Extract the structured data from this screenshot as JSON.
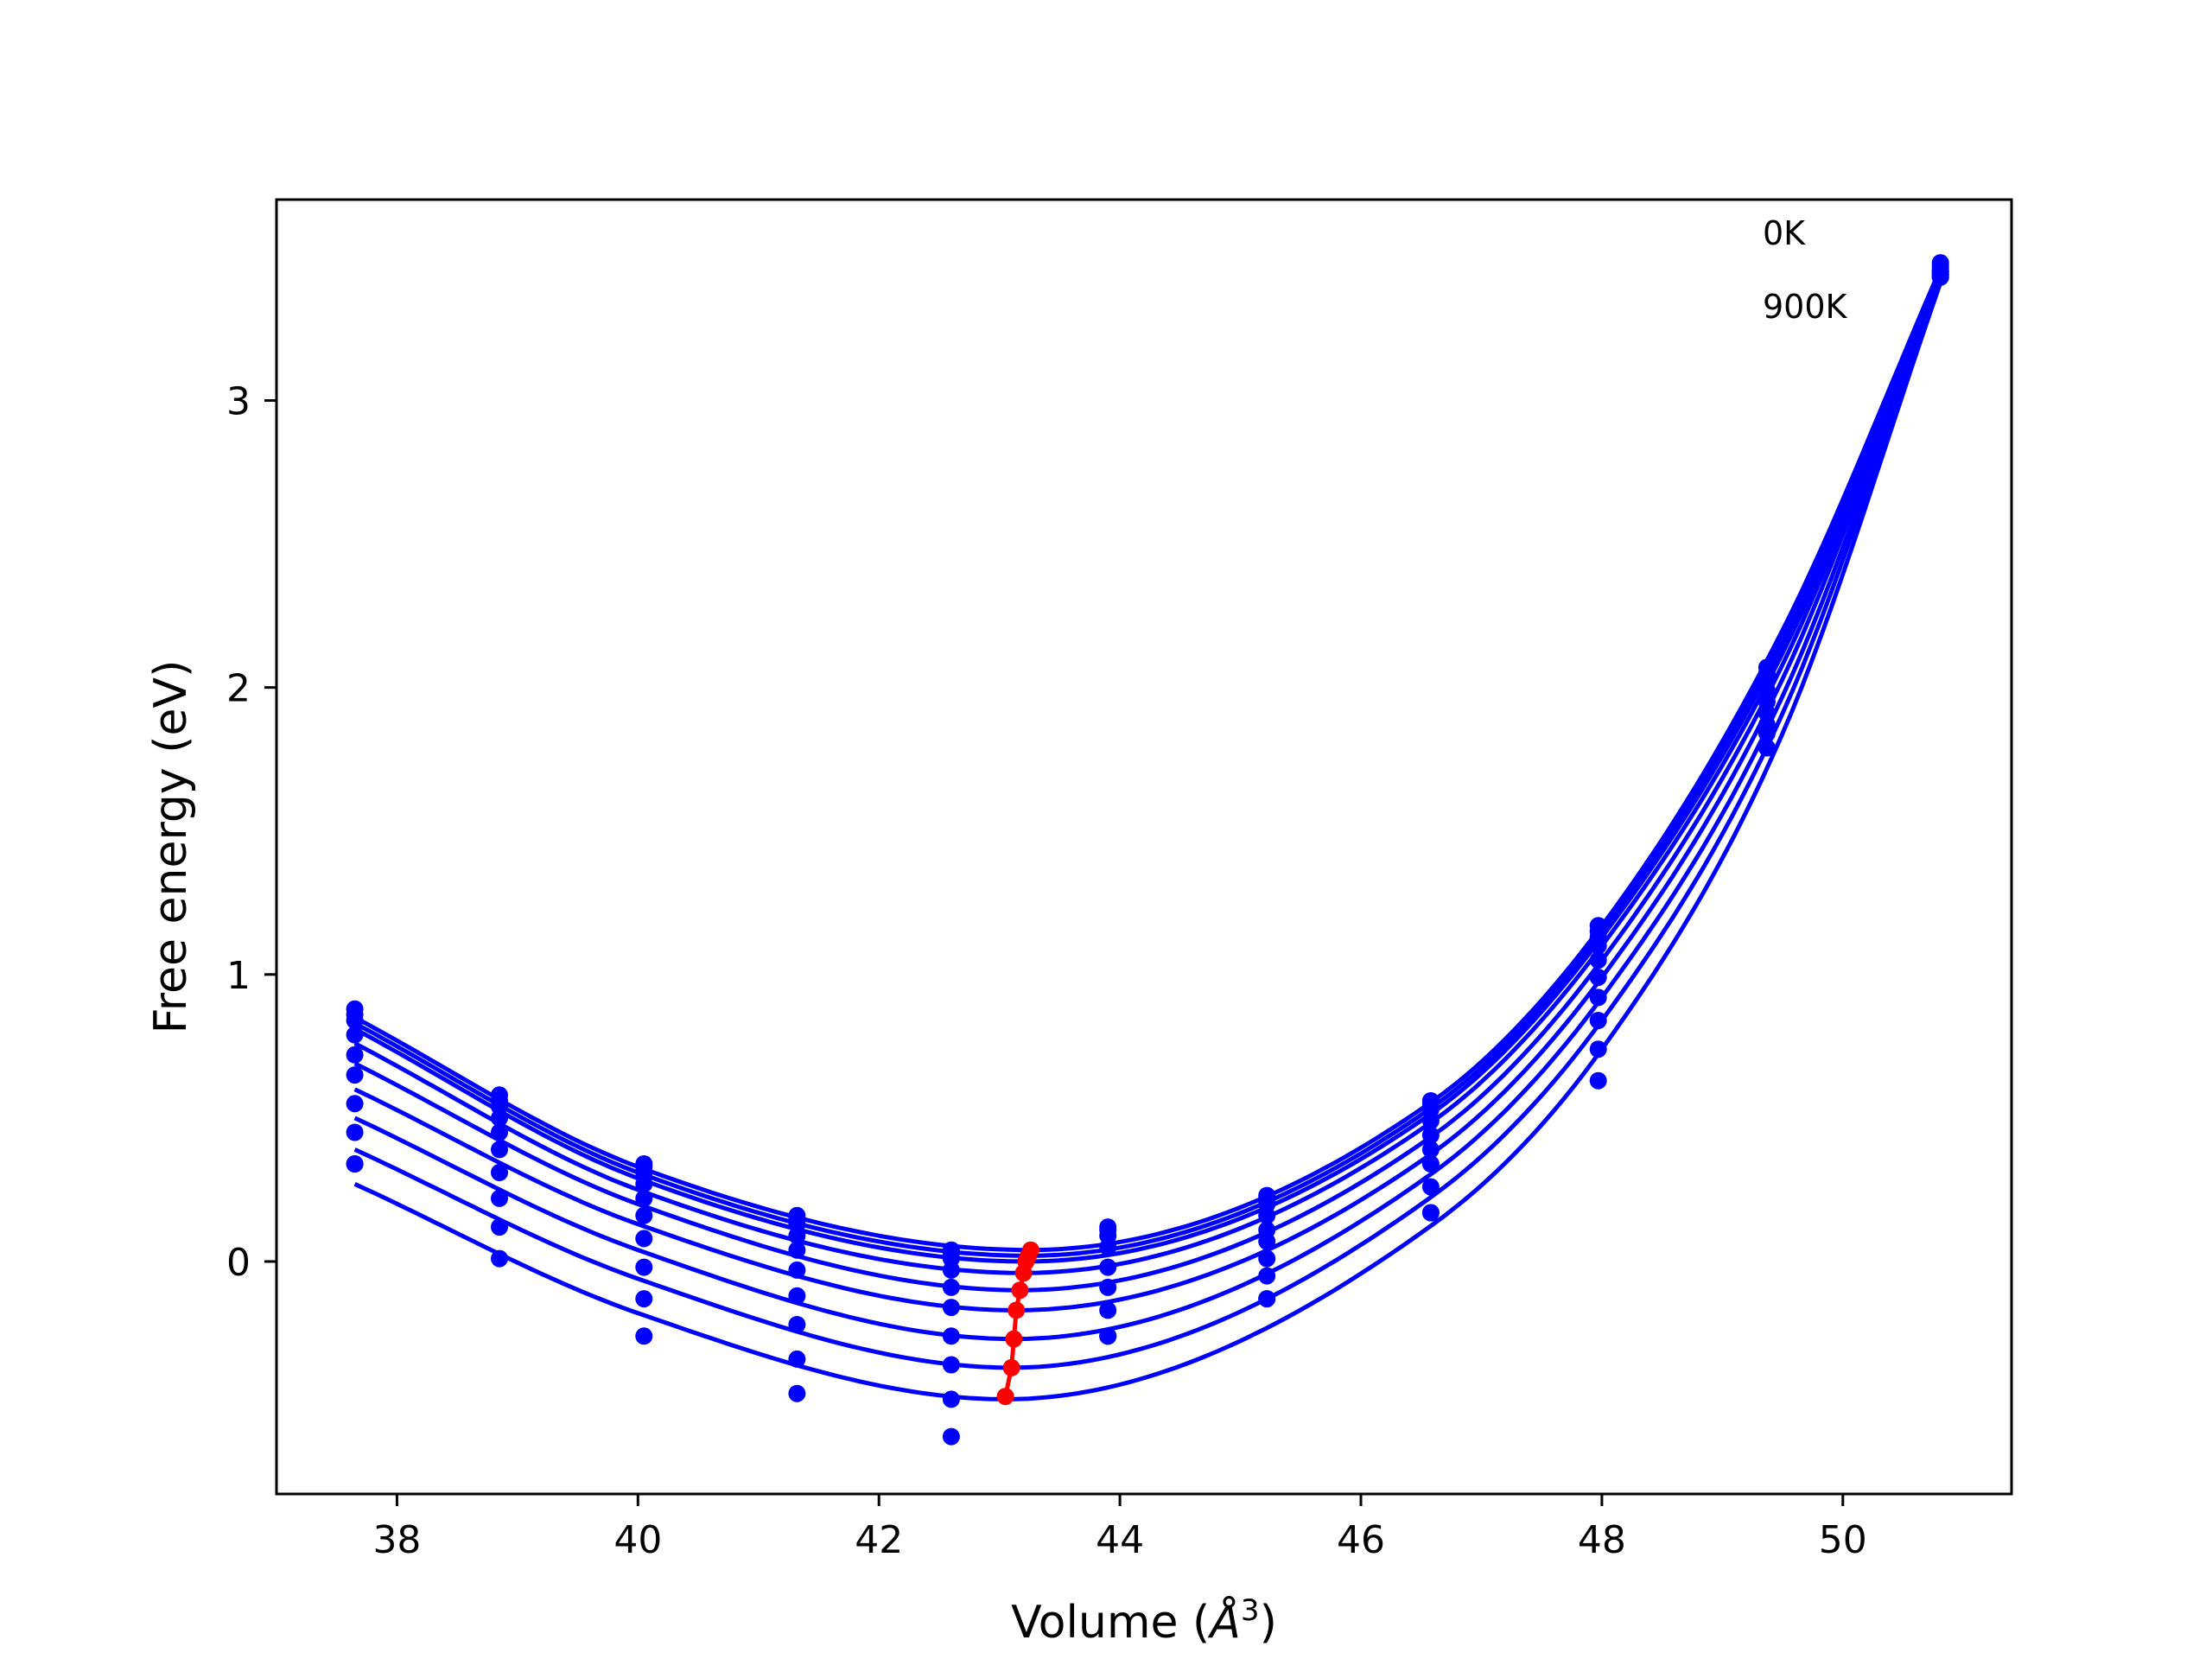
{
  "chart_data": {
    "type": "line",
    "title": "",
    "xlabel": "Volume (Å3)",
    "xlabel_main": "Volume (",
    "xlabel_unit": "Å",
    "xlabel_sup": "3",
    "xlabel_close": ")",
    "ylabel": "Free energy (eV)",
    "xlim": [
      37.0,
      51.4
    ],
    "ylim": [
      -0.81,
      3.7
    ],
    "grid": false,
    "xticks": [
      38,
      40,
      42,
      44,
      46,
      48,
      50
    ],
    "yticks": [
      0,
      1,
      2,
      3
    ],
    "xtick_labels": [
      "38",
      "40",
      "42",
      "44",
      "46",
      "48",
      "50"
    ],
    "ytick_labels": [
      "0",
      "1",
      "2",
      "3"
    ],
    "annotations": [
      "0K",
      "900K"
    ],
    "colors": {
      "curves": "#0000ff",
      "points": "#0000ff",
      "minima": "#ff0000",
      "axes": "#000000"
    },
    "volumes": [
      37.65,
      38.85,
      40.05,
      41.32,
      42.6,
      43.9,
      45.22,
      46.58,
      47.97,
      49.37,
      50.81
    ],
    "series": [
      {
        "values": [
          0.88,
          0.58,
          0.34,
          0.16,
          0.04,
          0.12,
          0.23,
          0.56,
          1.17,
          2.07,
          3.48
        ]
      },
      {
        "values": [
          0.86,
          0.56,
          0.33,
          0.15,
          0.03,
          0.11,
          0.22,
          0.55,
          1.15,
          2.05,
          3.47
        ]
      },
      {
        "values": [
          0.84,
          0.54,
          0.31,
          0.13,
          0.01,
          0.09,
          0.2,
          0.53,
          1.13,
          2.03,
          3.46
        ]
      },
      {
        "values": [
          0.79,
          0.5,
          0.27,
          0.09,
          -0.03,
          0.05,
          0.16,
          0.49,
          1.1,
          1.99,
          3.45
        ]
      },
      {
        "values": [
          0.72,
          0.45,
          0.22,
          0.04,
          -0.09,
          -0.02,
          0.11,
          0.44,
          1.05,
          1.95,
          3.45
        ]
      },
      {
        "values": [
          0.65,
          0.39,
          0.16,
          -0.03,
          -0.16,
          -0.09,
          0.07,
          0.39,
          0.99,
          1.91,
          3.44
        ]
      },
      {
        "values": [
          0.55,
          0.31,
          0.08,
          -0.12,
          -0.26,
          -0.17,
          0.01,
          0.34,
          0.92,
          1.87,
          3.44
        ]
      },
      {
        "values": [
          0.45,
          0.22,
          -0.02,
          -0.22,
          -0.36,
          -0.26,
          -0.05,
          0.26,
          0.84,
          1.84,
          3.44
        ]
      },
      {
        "values": [
          0.34,
          0.12,
          -0.13,
          -0.34,
          -0.48,
          -0.26,
          -0.13,
          0.17,
          0.74,
          1.79,
          3.43
        ]
      },
      {
        "values": [
          0.34,
          0.01,
          -0.26,
          -0.46,
          -0.61,
          -0.26,
          -0.13,
          0.17,
          0.63,
          1.79,
          3.43
        ]
      }
    ],
    "fit_curves": [
      {
        "points": [
          [
            37.65,
            0.85
          ],
          [
            40.0,
            0.33
          ],
          [
            43.25,
            0.04
          ],
          [
            46.6,
            0.56
          ],
          [
            48.0,
            1.17
          ],
          [
            49.5,
            2.2
          ],
          [
            50.81,
            3.46
          ]
        ]
      },
      {
        "points": [
          [
            37.65,
            0.83
          ],
          [
            40.0,
            0.31
          ],
          [
            43.24,
            0.02
          ],
          [
            46.6,
            0.54
          ],
          [
            48.0,
            1.15
          ],
          [
            49.5,
            2.18
          ],
          [
            50.81,
            3.46
          ]
        ]
      },
      {
        "points": [
          [
            37.65,
            0.81
          ],
          [
            40.0,
            0.29
          ],
          [
            43.22,
            0.0
          ],
          [
            46.6,
            0.52
          ],
          [
            48.0,
            1.13
          ],
          [
            49.5,
            2.15
          ],
          [
            50.81,
            3.45
          ]
        ]
      },
      {
        "points": [
          [
            37.65,
            0.76
          ],
          [
            40.0,
            0.25
          ],
          [
            43.2,
            -0.04
          ],
          [
            46.6,
            0.49
          ],
          [
            48.0,
            1.1
          ],
          [
            49.5,
            2.12
          ],
          [
            50.81,
            3.45
          ]
        ]
      },
      {
        "points": [
          [
            37.65,
            0.69
          ],
          [
            40.0,
            0.2
          ],
          [
            43.17,
            -0.1
          ],
          [
            46.6,
            0.44
          ],
          [
            48.0,
            1.05
          ],
          [
            49.5,
            2.08
          ],
          [
            50.81,
            3.44
          ]
        ]
      },
      {
        "points": [
          [
            37.65,
            0.6
          ],
          [
            40.0,
            0.13
          ],
          [
            43.14,
            -0.17
          ],
          [
            46.6,
            0.38
          ],
          [
            48.0,
            0.99
          ],
          [
            49.5,
            2.03
          ],
          [
            50.81,
            3.44
          ]
        ]
      },
      {
        "points": [
          [
            37.65,
            0.5
          ],
          [
            40.0,
            0.04
          ],
          [
            43.12,
            -0.27
          ],
          [
            46.6,
            0.31
          ],
          [
            48.0,
            0.92
          ],
          [
            49.5,
            1.97
          ],
          [
            50.81,
            3.43
          ]
        ]
      },
      {
        "points": [
          [
            37.65,
            0.39
          ],
          [
            40.0,
            -0.06
          ],
          [
            43.1,
            -0.37
          ],
          [
            46.6,
            0.23
          ],
          [
            48.0,
            0.84
          ],
          [
            49.5,
            1.91
          ],
          [
            50.81,
            3.42
          ]
        ]
      },
      {
        "points": [
          [
            37.65,
            0.27
          ],
          [
            40.0,
            -0.18
          ],
          [
            43.05,
            -0.48
          ],
          [
            46.6,
            0.13
          ],
          [
            48.0,
            0.74
          ],
          [
            49.5,
            1.84
          ],
          [
            50.81,
            3.41
          ]
        ]
      }
    ],
    "minima": [
      {
        "x": 43.26,
        "y": 0.04
      },
      {
        "x": 43.24,
        "y": 0.02
      },
      {
        "x": 43.22,
        "y": 0.0
      },
      {
        "x": 43.2,
        "y": -0.04
      },
      {
        "x": 43.17,
        "y": -0.1
      },
      {
        "x": 43.14,
        "y": -0.17
      },
      {
        "x": 43.12,
        "y": -0.27
      },
      {
        "x": 43.1,
        "y": -0.37
      },
      {
        "x": 43.05,
        "y": -0.47
      }
    ]
  }
}
